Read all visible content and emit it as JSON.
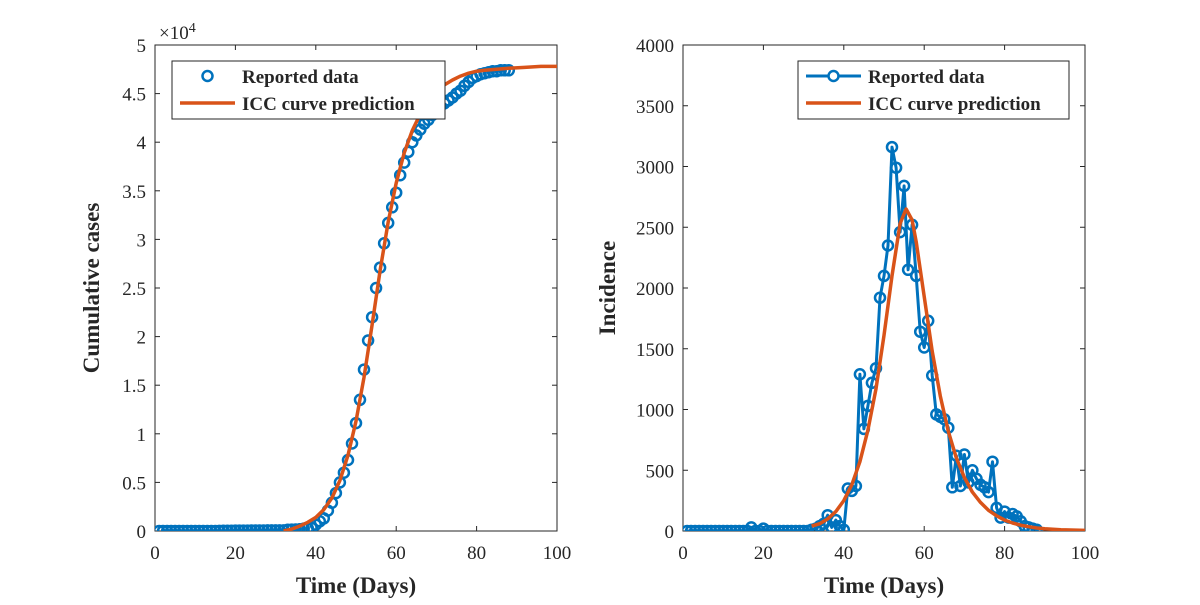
{
  "colors": {
    "reported": "#0072BD",
    "fit": "#D95319",
    "axis": "#262626"
  },
  "chart_data": [
    {
      "type": "scatter",
      "xlabel": "Time (Days)",
      "ylabel": "Cumulative cases",
      "exponent_label": "×10",
      "exponent_power": "4",
      "xlim": [
        0,
        100
      ],
      "ylim": [
        0,
        5
      ],
      "xticks": [
        0,
        20,
        40,
        60,
        80,
        100
      ],
      "yticks": [
        0,
        0.5,
        1,
        1.5,
        2,
        2.5,
        3,
        3.5,
        4,
        4.5,
        5
      ],
      "legend_position": "top-left",
      "series": [
        {
          "name": "Reported data",
          "style": "markers",
          "x": [
            1,
            2,
            3,
            4,
            5,
            6,
            7,
            8,
            9,
            10,
            11,
            12,
            13,
            14,
            15,
            16,
            17,
            18,
            19,
            20,
            21,
            22,
            23,
            24,
            25,
            26,
            27,
            28,
            29,
            30,
            31,
            32,
            33,
            34,
            35,
            36,
            37,
            38,
            39,
            40,
            41,
            42,
            43,
            44,
            45,
            46,
            47,
            48,
            49,
            50,
            51,
            52,
            53,
            54,
            55,
            56,
            57,
            58,
            59,
            60,
            61,
            62,
            63,
            64,
            65,
            66,
            67,
            68,
            69,
            70,
            71,
            72,
            73,
            74,
            75,
            76,
            77,
            78,
            79,
            80,
            81,
            82,
            83,
            84,
            85,
            86,
            87,
            88
          ],
          "y": [
            0,
            0,
            0,
            0,
            0,
            0,
            0,
            0,
            0,
            0,
            0,
            0,
            0,
            0,
            0,
            0.001,
            0.002,
            0.002,
            0.003,
            0.004,
            0.004,
            0.004,
            0.004,
            0.005,
            0.005,
            0.005,
            0.005,
            0.006,
            0.006,
            0.006,
            0.006,
            0.006,
            0.012,
            0.014,
            0.015,
            0.019,
            0.025,
            0.028,
            0.031,
            0.065,
            0.1,
            0.13,
            0.21,
            0.29,
            0.39,
            0.5,
            0.6,
            0.73,
            0.9,
            1.11,
            1.35,
            1.66,
            1.96,
            2.2,
            2.5,
            2.71,
            2.96,
            3.17,
            3.33,
            3.48,
            3.66,
            3.79,
            3.9,
            4.0,
            4.07,
            4.13,
            4.19,
            4.23,
            4.28,
            4.33,
            4.37,
            4.4,
            4.43,
            4.46,
            4.5,
            4.53,
            4.58,
            4.62,
            4.66,
            4.68,
            4.7,
            4.71,
            4.72,
            4.73,
            4.73,
            4.74,
            4.74,
            4.74
          ]
        },
        {
          "name": "ICC curve prediction",
          "style": "line",
          "x": [
            32,
            34,
            36,
            38,
            40,
            42,
            44,
            46,
            48,
            50,
            52,
            54,
            56,
            58,
            60,
            62,
            64,
            66,
            68,
            70,
            72,
            74,
            76,
            78,
            80,
            82,
            85,
            88,
            92,
            96,
            100
          ],
          "y": [
            0.0,
            0.02,
            0.05,
            0.09,
            0.14,
            0.22,
            0.34,
            0.52,
            0.78,
            1.13,
            1.58,
            2.12,
            2.68,
            3.18,
            3.58,
            3.89,
            4.12,
            4.29,
            4.42,
            4.52,
            4.59,
            4.64,
            4.68,
            4.71,
            4.73,
            4.74,
            4.75,
            4.76,
            4.77,
            4.78,
            4.78
          ]
        }
      ]
    },
    {
      "type": "line",
      "xlabel": "Time (Days)",
      "ylabel": "Incidence",
      "xlim": [
        0,
        100
      ],
      "ylim": [
        0,
        4000
      ],
      "xticks": [
        0,
        20,
        40,
        60,
        80,
        100
      ],
      "yticks": [
        0,
        500,
        1000,
        1500,
        2000,
        2500,
        3000,
        3500,
        4000
      ],
      "legend_position": "top-right",
      "series": [
        {
          "name": "Reported data",
          "style": "line-markers",
          "x": [
            1,
            2,
            3,
            4,
            5,
            6,
            7,
            8,
            9,
            10,
            11,
            12,
            13,
            14,
            15,
            16,
            17,
            18,
            19,
            20,
            21,
            22,
            23,
            24,
            25,
            26,
            27,
            28,
            29,
            30,
            31,
            32,
            33,
            34,
            35,
            36,
            37,
            38,
            39,
            40,
            41,
            42,
            43,
            44,
            45,
            46,
            47,
            48,
            49,
            50,
            51,
            52,
            53,
            54,
            55,
            56,
            57,
            58,
            59,
            60,
            61,
            62,
            63,
            64,
            65,
            66,
            67,
            68,
            69,
            70,
            71,
            72,
            73,
            74,
            75,
            76,
            77,
            78,
            79,
            80,
            81,
            82,
            83,
            84,
            85,
            86,
            87,
            88
          ],
          "y": [
            0,
            0,
            0,
            0,
            0,
            0,
            0,
            0,
            0,
            0,
            0,
            0,
            0,
            0,
            0,
            0,
            30,
            0,
            0,
            20,
            0,
            0,
            0,
            0,
            0,
            0,
            0,
            0,
            0,
            0,
            0,
            10,
            20,
            40,
            60,
            130,
            30,
            90,
            40,
            10,
            350,
            330,
            370,
            1290,
            840,
            1030,
            1220,
            1340,
            1920,
            2100,
            2350,
            3160,
            2990,
            2460,
            2840,
            2150,
            2520,
            2100,
            1640,
            1510,
            1730,
            1280,
            960,
            940,
            920,
            850,
            360,
            620,
            370,
            630,
            400,
            500,
            430,
            380,
            360,
            320,
            570,
            190,
            110,
            160,
            110,
            140,
            120,
            80,
            40,
            30,
            20,
            10
          ]
        },
        {
          "name": "ICC curve prediction",
          "style": "line",
          "x": [
            32,
            34,
            36,
            38,
            40,
            42,
            44,
            46,
            48,
            50,
            52,
            54,
            55.5,
            57,
            58,
            60,
            62,
            64,
            66,
            68,
            70,
            72,
            74,
            76,
            78,
            80,
            82,
            84,
            86,
            88,
            90,
            94,
            100
          ],
          "y": [
            40,
            60,
            100,
            160,
            250,
            380,
            570,
            830,
            1170,
            1610,
            2100,
            2530,
            2650,
            2560,
            2380,
            1930,
            1480,
            1110,
            820,
            600,
            440,
            320,
            235,
            170,
            125,
            90,
            66,
            48,
            35,
            25,
            18,
            10,
            5
          ]
        }
      ]
    }
  ]
}
